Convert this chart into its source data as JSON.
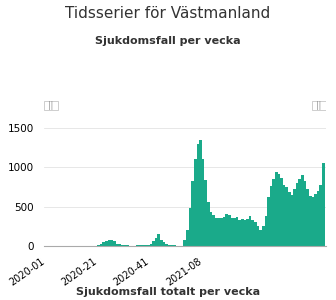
{
  "title": "Tidsserier för Västmanland",
  "subtitle": "Sjukdomsfall per vecka",
  "bottom_label": "Sjukdomsfall totalt per vecka",
  "bar_color": "#1aaa8a",
  "background_color": "#ffffff",
  "slider_color": "#dddddd",
  "yticks": [
    0,
    500,
    1000,
    1500
  ],
  "xtick_labels": [
    "2020-01",
    "2020-21",
    "2020-41",
    "2021-08"
  ],
  "values": [
    2,
    2,
    2,
    2,
    3,
    3,
    3,
    3,
    3,
    3,
    3,
    3,
    3,
    3,
    3,
    3,
    3,
    3,
    3,
    3,
    10,
    30,
    50,
    60,
    70,
    80,
    60,
    30,
    20,
    15,
    10,
    8,
    5,
    4,
    5,
    8,
    10,
    12,
    12,
    10,
    30,
    60,
    100,
    150,
    80,
    50,
    20,
    10,
    15,
    10,
    5,
    5,
    5,
    80,
    200,
    480,
    820,
    1100,
    1300,
    1350,
    1110,
    840,
    560,
    430,
    390,
    360,
    350,
    350,
    370,
    410,
    390,
    360,
    350,
    370,
    330,
    340,
    330,
    340,
    380,
    330,
    300,
    250,
    200,
    250,
    380,
    620,
    760,
    850,
    940,
    920,
    860,
    770,
    750,
    680,
    650,
    720,
    800,
    850,
    900,
    820,
    720,
    640,
    620,
    660,
    700,
    770,
    1050
  ]
}
